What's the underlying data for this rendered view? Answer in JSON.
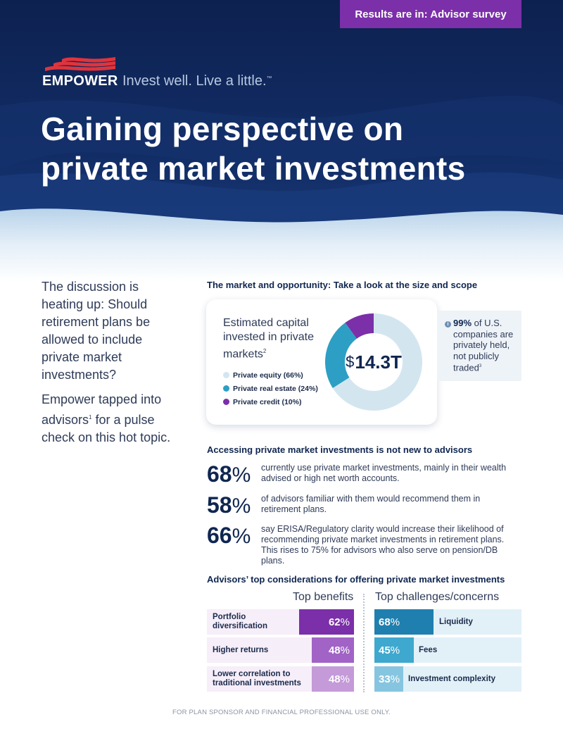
{
  "hero": {
    "tag": "Results are in: Advisor survey",
    "brand": "EMPOWER",
    "tagline": "Invest well. Live a little.",
    "tagline_mark": "™",
    "title_line1": "Gaining perspective on",
    "title_line2": "private market investments"
  },
  "intro": {
    "p1": "The discussion is heating up: Should retirement plans be allowed to include private market investments?",
    "p2_a": "Empower tapped into advisors",
    "p2_sup": "1",
    "p2_b": " for a pulse check on this hot topic."
  },
  "market": {
    "heading": "The market and opportunity: Take a look at the size and scope",
    "card_title": "Estimated capital invested in private markets",
    "card_title_sup": "2",
    "total_dollar": "$",
    "total_amount": "14.3T",
    "legend": [
      {
        "label": "Private equity (66%)",
        "color": "#d3e6f0"
      },
      {
        "label": "Private real estate (24%)",
        "color": "#2d9fc4"
      },
      {
        "label": "Private credit (10%)",
        "color": "#7b2fa8"
      }
    ],
    "fact_icon": "i",
    "fact_bold": "99%",
    "fact_text": " of U.S. companies are privately held, not publicly traded",
    "fact_sup": "3"
  },
  "chart_data": {
    "type": "pie",
    "categories": [
      "Private equity",
      "Private real estate",
      "Private credit"
    ],
    "values": [
      66,
      24,
      10
    ],
    "colors": [
      "#d3e6f0",
      "#2d9fc4",
      "#7b2fa8"
    ]
  },
  "access": {
    "heading": "Accessing private market investments is not new to advisors",
    "stats": [
      {
        "num": "68",
        "pct": "%",
        "text": "currently use private market investments, mainly in their wealth advised or high net worth accounts."
      },
      {
        "num": "58",
        "pct": "%",
        "text": "of advisors familiar with them would recommend them in retirement plans."
      },
      {
        "num": "66",
        "pct": "%",
        "text": "say ERISA/Regulatory clarity would increase their likelihood of recommending private market investments in retirement plans. This rises to 75% for advisors who also serve on pension/DB plans."
      }
    ]
  },
  "considerations": {
    "heading": "Advisors’ top considerations for offering private market investments",
    "benefits_head": "Top benefits",
    "challenges_head": "Top challenges/concerns",
    "benefits": [
      {
        "label": "Portfolio diversification",
        "num": "62",
        "pct": "%",
        "value": 62,
        "color": "#7b2fa8",
        "bg": "#f6eef9"
      },
      {
        "label": "Higher returns",
        "num": "48",
        "pct": "%",
        "value": 48,
        "color": "#a163c6",
        "bg": "#f6eef9"
      },
      {
        "label": "Lower correlation to traditional investments",
        "num": "48",
        "pct": "%",
        "value": 48,
        "color": "#c49ad9",
        "bg": "#f6eef9"
      }
    ],
    "challenges": [
      {
        "label": "Liquidity",
        "num": "68",
        "pct": "%",
        "value": 68,
        "color": "#1f7fae"
      },
      {
        "label": "Fees",
        "num": "45",
        "pct": "%",
        "value": 45,
        "color": "#3ea8cf"
      },
      {
        "label": "Investment complexity",
        "num": "33",
        "pct": "%",
        "value": 33,
        "color": "#86c5df"
      }
    ]
  },
  "footer": "FOR PLAN SPONSOR AND FINANCIAL PROFESSIONAL USE ONLY."
}
